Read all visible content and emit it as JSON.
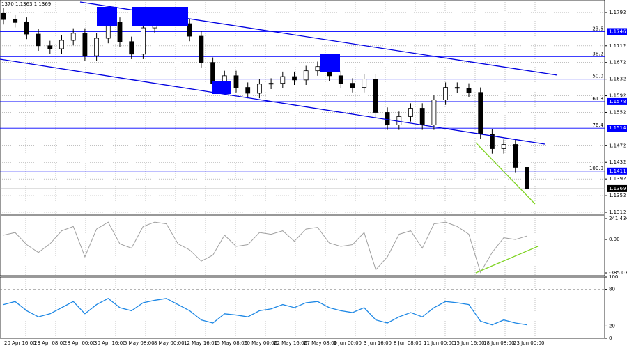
{
  "header": "1370 1.1363 1.1369",
  "time_labels": [
    "20 Apr 16:00",
    "23 Apr 08:00",
    "28 Apr 00:00",
    "30 Apr 16:00",
    "5 May 08:00",
    "8 May 00:00",
    "12 May 16:00",
    "15 May 08:00",
    "20 May 00:00",
    "22 May 16:00",
    "27 May 08:00",
    "1 Jun 00:00",
    "3 Jun 16:00",
    "8 Jun 08:00",
    "11 Jun 00:00",
    "15 Jun 16:00",
    "18 Jun 08:00",
    "23 Jun 00:00"
  ],
  "chart_data": [
    {
      "type": "candlestick",
      "up_color": "#ffffff",
      "down_color": "#000000",
      "line_color": "#0000ff",
      "ylim": [
        1.1307,
        1.1822
      ],
      "yticks": [
        1.1792,
        1.1712,
        1.1672,
        1.1632,
        1.1592,
        1.1552,
        1.1472,
        1.1432,
        1.1392,
        1.1352,
        1.1312
      ],
      "levels": [
        {
          "value": 1.1746,
          "label": "23.6",
          "tagged": true
        },
        {
          "value": 1.1686,
          "label": "38.2",
          "tagged": false
        },
        {
          "value": 1.1632,
          "label": "50.0",
          "tagged": false
        },
        {
          "value": 1.1578,
          "label": "61.8",
          "tagged": true
        },
        {
          "value": 1.1514,
          "label": "76.4",
          "tagged": true
        },
        {
          "value": 1.1411,
          "label": "100.0",
          "tagged": true
        }
      ],
      "last": 1.1369,
      "open": [
        1.179,
        1.1775,
        1.1768,
        1.174,
        1.1712,
        1.1705,
        1.1725,
        1.1742,
        1.1688,
        1.173,
        1.1768,
        1.1722,
        1.1692,
        1.1755,
        1.178,
        1.1788,
        1.1765,
        1.1735,
        1.1672,
        1.1622,
        1.164,
        1.1612,
        1.1598,
        1.162,
        1.1622,
        1.1638,
        1.163,
        1.1652,
        1.1662,
        1.164,
        1.1622,
        1.1612,
        1.1632,
        1.1552,
        1.1522,
        1.1542,
        1.1562,
        1.1522,
        1.1582,
        1.1612,
        1.161,
        1.16,
        1.15,
        1.1465,
        1.1475,
        1.142
      ],
      "high": [
        1.1802,
        1.1787,
        1.178,
        1.1752,
        1.1724,
        1.1737,
        1.1754,
        1.1754,
        1.1742,
        1.178,
        1.178,
        1.1734,
        1.1767,
        1.1792,
        1.18,
        1.18,
        1.1777,
        1.1747,
        1.1684,
        1.1652,
        1.1652,
        1.1624,
        1.1632,
        1.1634,
        1.165,
        1.165,
        1.1664,
        1.1674,
        1.1674,
        1.1652,
        1.1634,
        1.1644,
        1.1644,
        1.1564,
        1.1554,
        1.1574,
        1.1574,
        1.1594,
        1.1624,
        1.1624,
        1.1622,
        1.1612,
        1.1512,
        1.1487,
        1.1487,
        1.1432
      ],
      "low": [
        1.1763,
        1.1756,
        1.1728,
        1.17,
        1.1693,
        1.1693,
        1.1713,
        1.1676,
        1.1676,
        1.1718,
        1.171,
        1.168,
        1.168,
        1.1743,
        1.1768,
        1.1753,
        1.1723,
        1.166,
        1.161,
        1.161,
        1.16,
        1.1586,
        1.1586,
        1.1608,
        1.161,
        1.1618,
        1.1618,
        1.164,
        1.1628,
        1.161,
        1.16,
        1.16,
        1.154,
        1.151,
        1.151,
        1.153,
        1.151,
        1.151,
        1.157,
        1.1598,
        1.1588,
        1.1488,
        1.1453,
        1.1453,
        1.1408,
        1.1363
      ],
      "close": [
        1.1775,
        1.1768,
        1.174,
        1.1712,
        1.1705,
        1.1725,
        1.1742,
        1.1688,
        1.173,
        1.1768,
        1.1722,
        1.1692,
        1.1755,
        1.178,
        1.1788,
        1.1765,
        1.1735,
        1.1672,
        1.1622,
        1.164,
        1.1612,
        1.1598,
        1.162,
        1.1622,
        1.1638,
        1.163,
        1.1652,
        1.1662,
        1.164,
        1.1622,
        1.1612,
        1.1632,
        1.1552,
        1.1522,
        1.1542,
        1.1562,
        1.1522,
        1.1582,
        1.1612,
        1.161,
        1.16,
        1.15,
        1.1465,
        1.1475,
        1.142,
        1.1369
      ]
    },
    {
      "type": "line",
      "color": "#a0a0a0",
      "ylim": [
        -417,
        273.5
      ],
      "yticks": [
        241.4349,
        {
          "value": 0,
          "label": "0.00"
        },
        -385.039
      ],
      "values": [
        50,
        80,
        -60,
        -150,
        -50,
        100,
        150,
        -200,
        120,
        200,
        -50,
        -100,
        150,
        200,
        180,
        -50,
        -120,
        -250,
        -180,
        50,
        -80,
        -60,
        80,
        60,
        100,
        -20,
        120,
        140,
        -40,
        -80,
        -60,
        80,
        -350,
        -200,
        60,
        100,
        -100,
        180,
        200,
        150,
        60,
        -380,
        -150,
        20,
        0,
        40
      ]
    },
    {
      "type": "line",
      "color": "#1e88e5",
      "ylim": [
        0,
        100
      ],
      "yticks": [
        100,
        80,
        20,
        0
      ],
      "dashed_levels": [
        80,
        20
      ],
      "values": [
        55,
        60,
        45,
        35,
        40,
        50,
        60,
        40,
        55,
        65,
        50,
        45,
        58,
        62,
        65,
        55,
        45,
        30,
        25,
        40,
        38,
        35,
        45,
        48,
        55,
        50,
        58,
        60,
        50,
        45,
        42,
        50,
        30,
        25,
        35,
        42,
        35,
        50,
        60,
        58,
        55,
        28,
        22,
        30,
        25,
        22
      ]
    }
  ]
}
